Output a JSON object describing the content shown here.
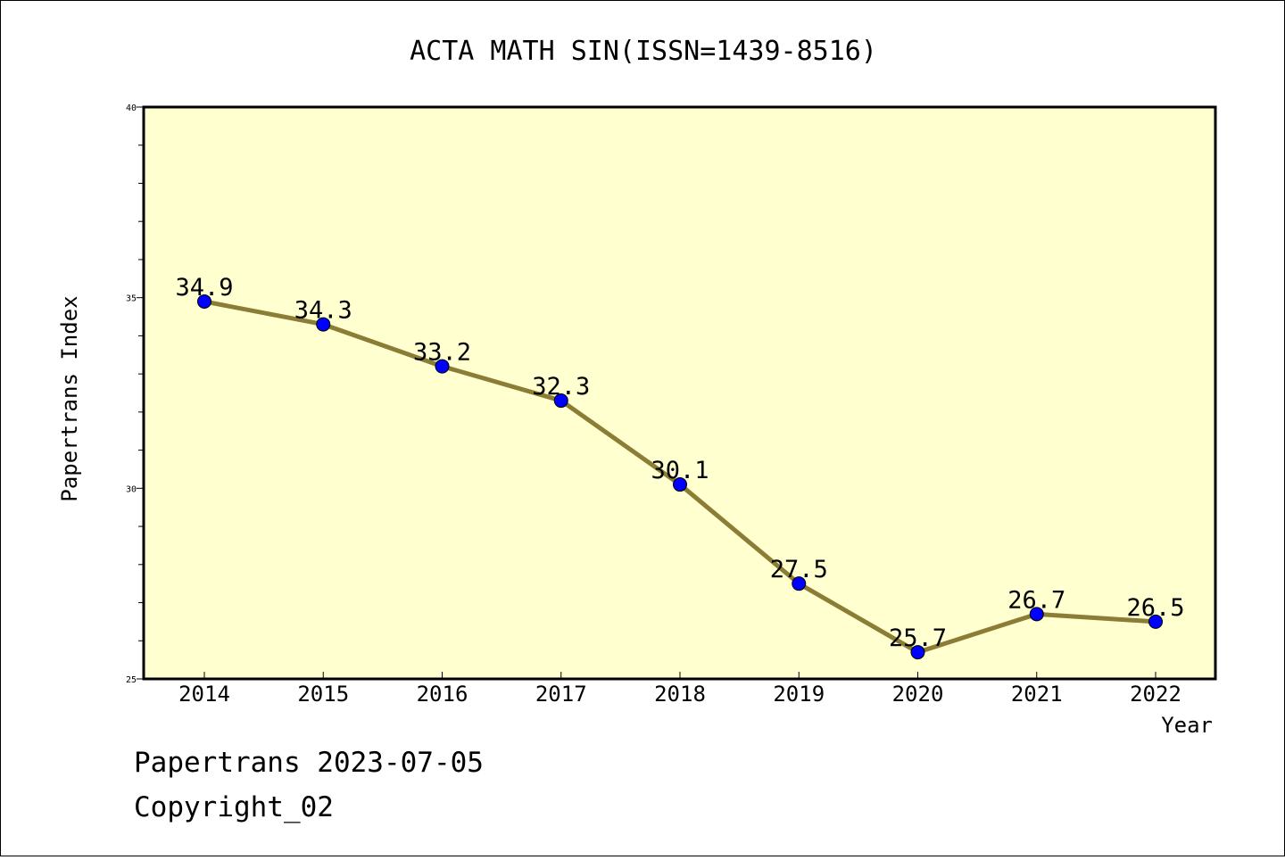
{
  "chart_data": {
    "type": "line",
    "title": "ACTA MATH SIN(ISSN=1439-8516)",
    "xlabel": "Year",
    "ylabel": "Papertrans Index",
    "categories": [
      "2014",
      "2015",
      "2016",
      "2017",
      "2018",
      "2019",
      "2020",
      "2021",
      "2022"
    ],
    "series": [
      {
        "values": [
          34.9,
          34.3,
          33.2,
          32.3,
          30.1,
          27.5,
          25.7,
          26.7,
          26.5
        ]
      }
    ],
    "data_labels": [
      "34.9",
      "34.3",
      "33.2",
      "32.3",
      "30.1",
      "27.5",
      "25.7",
      "26.7",
      "26.5"
    ],
    "ylim": [
      25,
      40
    ],
    "y_ticks": [
      "25",
      "30",
      "35",
      "40"
    ],
    "grid": false,
    "colors": {
      "plot_background": "#ffffd0",
      "line": "#8b7d35",
      "marker": "#0000ff"
    }
  },
  "footer": {
    "line1": "Papertrans 2023-07-05",
    "line2": "Copyright_02"
  }
}
